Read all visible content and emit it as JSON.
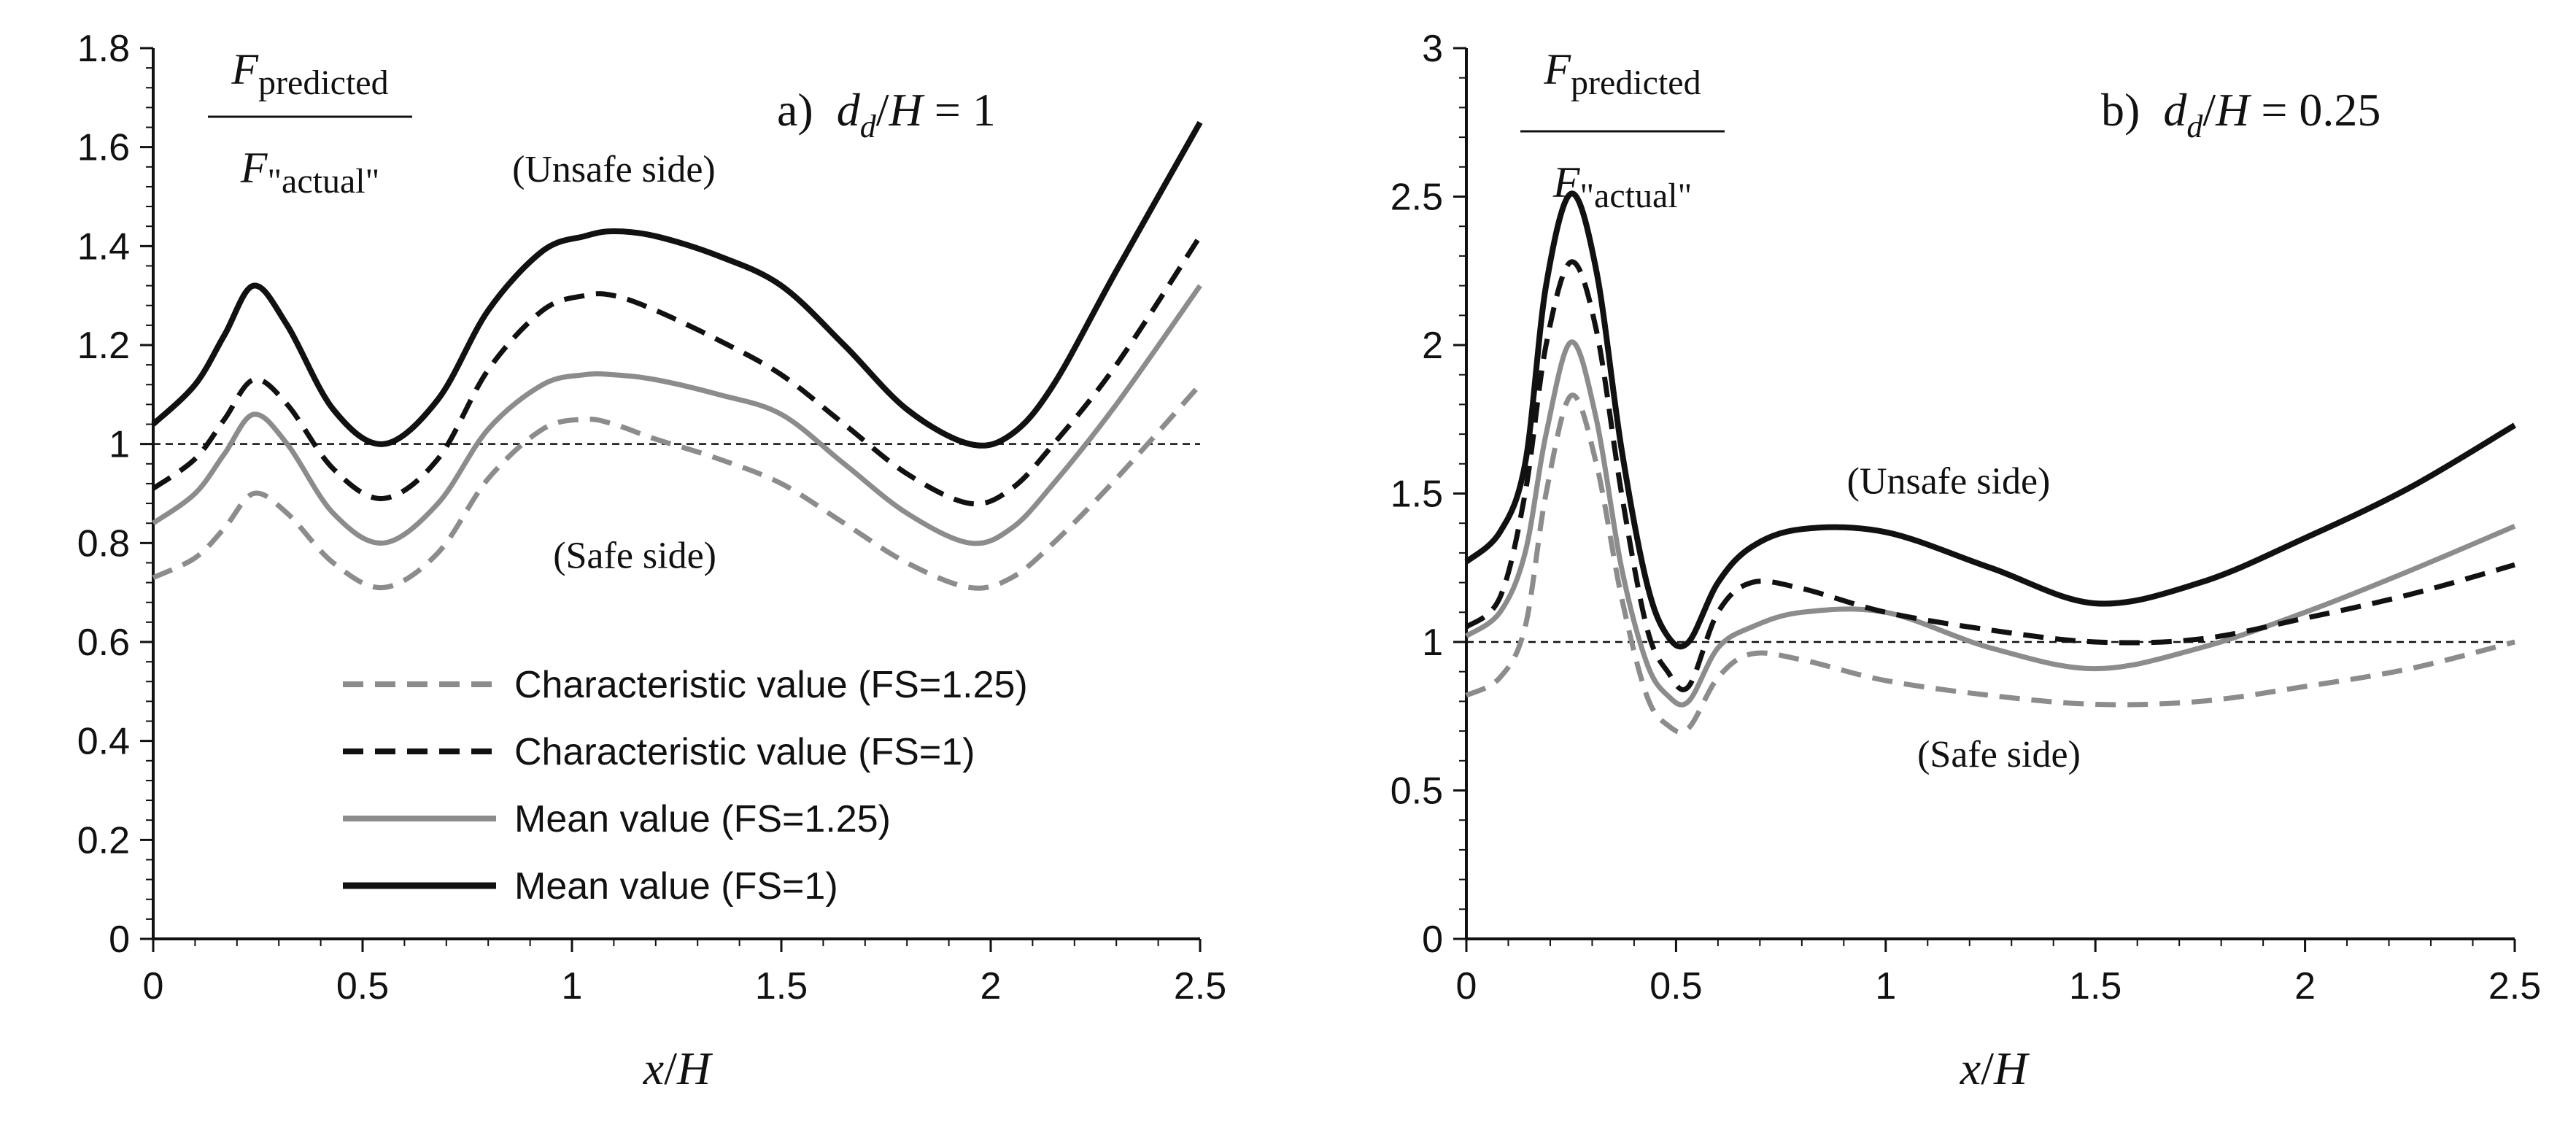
{
  "chart_data": [
    {
      "id": "a",
      "type": "line",
      "title": {
        "prefix": "a)",
        "lhs_main": "d",
        "lhs_sub": "d",
        "slash": "/",
        "rhs": "H",
        "equals": " = ",
        "value": "1"
      },
      "xlabel": {
        "var": "x",
        "slash": "/",
        "denom": "H"
      },
      "ylabel": {
        "numerator_main": "F",
        "numerator_sub": "predicted",
        "denominator_main": "F",
        "denominator_sub": "\"actual\""
      },
      "xlim": [
        0,
        2.5
      ],
      "ylim": [
        0,
        1.8
      ],
      "xticks": [
        0,
        0.5,
        1,
        1.5,
        2,
        2.5
      ],
      "xtick_labels": [
        "0",
        "0.5",
        "1",
        "1.5",
        "2",
        "2.5"
      ],
      "yticks": [
        0,
        0.2,
        0.4,
        0.6,
        0.8,
        1,
        1.2,
        1.4,
        1.6,
        1.8
      ],
      "ytick_labels": [
        "0",
        "0.2",
        "0.4",
        "0.6",
        "0.8",
        "1",
        "1.2",
        "1.4",
        "1.6",
        "1.8"
      ],
      "reference_line": {
        "y": 1,
        "style": "dashed"
      },
      "annotations": [
        {
          "text": "(Unsafe side)",
          "x": 1.1,
          "y": 1.53
        },
        {
          "text": "(Safe side)",
          "x": 1.15,
          "y": 0.75
        }
      ],
      "series": [
        {
          "key": "char_fs125",
          "name": "Characteristic value (FS=1.25)",
          "x": [
            0,
            0.1,
            0.17,
            0.24,
            0.32,
            0.43,
            0.55,
            0.68,
            0.8,
            0.93,
            1.03,
            1.1,
            1.2,
            1.35,
            1.5,
            1.65,
            1.8,
            1.95,
            2.05,
            2.15,
            2.3,
            2.5
          ],
          "y": [
            0.73,
            0.77,
            0.83,
            0.9,
            0.86,
            0.76,
            0.71,
            0.78,
            0.93,
            1.03,
            1.05,
            1.04,
            1.01,
            0.97,
            0.92,
            0.84,
            0.76,
            0.71,
            0.73,
            0.8,
            0.93,
            1.12
          ]
        },
        {
          "key": "char_fs1",
          "name": "Characteristic value (FS=1)",
          "x": [
            0,
            0.1,
            0.17,
            0.24,
            0.32,
            0.43,
            0.55,
            0.68,
            0.8,
            0.93,
            1.03,
            1.1,
            1.2,
            1.35,
            1.5,
            1.65,
            1.8,
            1.95,
            2.05,
            2.15,
            2.3,
            2.5
          ],
          "y": [
            0.91,
            0.97,
            1.05,
            1.13,
            1.08,
            0.95,
            0.89,
            0.97,
            1.15,
            1.27,
            1.3,
            1.3,
            1.27,
            1.21,
            1.14,
            1.04,
            0.94,
            0.88,
            0.91,
            1.0,
            1.16,
            1.42
          ]
        },
        {
          "key": "mean_fs125",
          "name": "Mean value (FS=1.25)",
          "x": [
            0,
            0.1,
            0.17,
            0.24,
            0.32,
            0.43,
            0.55,
            0.68,
            0.8,
            0.93,
            1.03,
            1.1,
            1.2,
            1.35,
            1.5,
            1.65,
            1.8,
            1.95,
            2.05,
            2.15,
            2.3,
            2.5
          ],
          "y": [
            0.84,
            0.9,
            0.98,
            1.06,
            1.0,
            0.86,
            0.8,
            0.88,
            1.03,
            1.12,
            1.14,
            1.14,
            1.13,
            1.1,
            1.06,
            0.96,
            0.86,
            0.8,
            0.83,
            0.92,
            1.08,
            1.32
          ]
        },
        {
          "key": "mean_fs1",
          "name": "Mean value (FS=1)",
          "x": [
            0,
            0.1,
            0.17,
            0.24,
            0.32,
            0.43,
            0.55,
            0.68,
            0.8,
            0.93,
            1.03,
            1.1,
            1.2,
            1.35,
            1.5,
            1.65,
            1.8,
            1.95,
            2.05,
            2.15,
            2.3,
            2.5
          ],
          "y": [
            1.04,
            1.12,
            1.22,
            1.32,
            1.24,
            1.07,
            1.0,
            1.09,
            1.27,
            1.39,
            1.42,
            1.43,
            1.42,
            1.38,
            1.32,
            1.2,
            1.07,
            1.0,
            1.02,
            1.12,
            1.35,
            1.65
          ]
        }
      ],
      "legend": {
        "position": "lower-left",
        "entries": [
          "Characteristic value (FS=1.25)",
          "Characteristic value (FS=1)",
          "Mean value (FS=1.25)",
          "Mean value (FS=1)"
        ]
      }
    },
    {
      "id": "b",
      "type": "line",
      "title": {
        "prefix": "b)",
        "lhs_main": "d",
        "lhs_sub": "d",
        "slash": "/",
        "rhs": "H",
        "equals": " = ",
        "value": "0.25"
      },
      "xlabel": {
        "var": "x",
        "slash": "/",
        "denom": "H"
      },
      "ylabel": {
        "numerator_main": "F",
        "numerator_sub": "predicted",
        "denominator_main": "F",
        "denominator_sub": "\"actual\""
      },
      "xlim": [
        0,
        2.5
      ],
      "ylim": [
        0,
        3
      ],
      "xticks": [
        0,
        0.5,
        1,
        1.5,
        2,
        2.5
      ],
      "xtick_labels": [
        "0",
        "0.5",
        "1",
        "1.5",
        "2",
        "2.5"
      ],
      "yticks": [
        0,
        0.5,
        1,
        1.5,
        2,
        2.5,
        3
      ],
      "ytick_labels": [
        "0",
        "0.5",
        "1",
        "1.5",
        "2",
        "2.5",
        "3"
      ],
      "reference_line": {
        "y": 1,
        "style": "dashed"
      },
      "annotations": [
        {
          "text": "(Unsafe side)",
          "x": 1.15,
          "y": 1.5
        },
        {
          "text": "(Safe side)",
          "x": 1.27,
          "y": 0.58
        }
      ],
      "series": [
        {
          "key": "char_fs125",
          "name": "Characteristic value (FS=1.25)",
          "x": [
            0,
            0.08,
            0.14,
            0.19,
            0.25,
            0.31,
            0.37,
            0.43,
            0.48,
            0.53,
            0.6,
            0.68,
            0.8,
            1.0,
            1.25,
            1.5,
            1.75,
            2.0,
            2.25,
            2.5
          ],
          "y": [
            0.82,
            0.88,
            1.05,
            1.5,
            1.83,
            1.6,
            1.15,
            0.82,
            0.72,
            0.71,
            0.88,
            0.96,
            0.94,
            0.87,
            0.82,
            0.79,
            0.8,
            0.85,
            0.91,
            1.0
          ]
        },
        {
          "key": "char_fs1",
          "name": "Characteristic value (FS=1)",
          "x": [
            0,
            0.08,
            0.14,
            0.19,
            0.25,
            0.31,
            0.37,
            0.43,
            0.48,
            0.53,
            0.6,
            0.68,
            0.8,
            1.0,
            1.25,
            1.5,
            1.75,
            2.0,
            2.25,
            2.5
          ],
          "y": [
            1.05,
            1.15,
            1.5,
            2.0,
            2.28,
            2.05,
            1.5,
            1.05,
            0.9,
            0.85,
            1.1,
            1.2,
            1.18,
            1.1,
            1.04,
            1.0,
            1.01,
            1.08,
            1.16,
            1.26
          ]
        },
        {
          "key": "mean_fs125",
          "name": "Mean value (FS=1.25)",
          "x": [
            0,
            0.08,
            0.14,
            0.19,
            0.25,
            0.31,
            0.37,
            0.43,
            0.48,
            0.53,
            0.6,
            0.68,
            0.8,
            1.0,
            1.25,
            1.5,
            1.75,
            2.0,
            2.25,
            2.5
          ],
          "y": [
            1.02,
            1.1,
            1.3,
            1.7,
            2.01,
            1.75,
            1.25,
            0.93,
            0.82,
            0.8,
            0.98,
            1.05,
            1.1,
            1.1,
            0.98,
            0.91,
            0.98,
            1.1,
            1.24,
            1.39
          ]
        },
        {
          "key": "mean_fs1",
          "name": "Mean value (FS=1)",
          "x": [
            0,
            0.08,
            0.14,
            0.19,
            0.25,
            0.31,
            0.37,
            0.43,
            0.48,
            0.53,
            0.6,
            0.68,
            0.8,
            1.0,
            1.25,
            1.5,
            1.75,
            2.0,
            2.25,
            2.5
          ],
          "y": [
            1.27,
            1.37,
            1.6,
            2.2,
            2.51,
            2.25,
            1.65,
            1.2,
            1.02,
            1.0,
            1.2,
            1.32,
            1.38,
            1.37,
            1.25,
            1.13,
            1.2,
            1.35,
            1.52,
            1.73
          ]
        }
      ]
    }
  ],
  "styles": {
    "char_fs125": {
      "color": "#8c8c8c",
      "dash": "28 16",
      "width": 7
    },
    "char_fs1": {
      "color": "#111111",
      "dash": "28 16",
      "width": 7
    },
    "mean_fs125": {
      "color": "#8c8c8c",
      "dash": "",
      "width": 7
    },
    "mean_fs1": {
      "color": "#111111",
      "dash": "",
      "width": 8
    },
    "axis_color": "#111111",
    "reference_color": "#111111"
  }
}
